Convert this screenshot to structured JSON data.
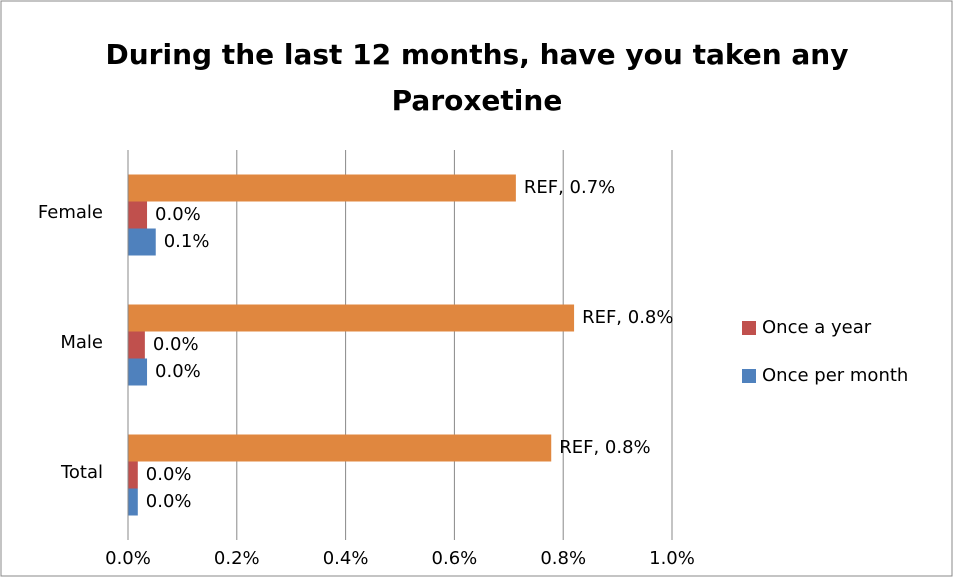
{
  "chart_data": {
    "type": "hbar",
    "title": "During the last 12 months, have you taken any Paroxetine",
    "categories": [
      "Female",
      "Male",
      "Total"
    ],
    "series": [
      {
        "name": "Once per month",
        "color": "#4f81bd",
        "values": [
          0.051,
          0.035,
          0.018
        ],
        "value_labels": [
          "0.1%",
          "0.0%",
          "0.0%"
        ],
        "show_in_legend": true
      },
      {
        "name": "Once a year",
        "color": "#c0504d",
        "values": [
          0.035,
          0.031,
          0.018
        ],
        "value_labels": [
          "0.0%",
          "0.0%",
          "0.0%"
        ],
        "show_in_legend": true
      },
      {
        "name": "REF",
        "color": "#e0873f",
        "values": [
          0.713,
          0.82,
          0.778
        ],
        "value_labels": [
          "REF, 0.7%",
          "REF, 0.8%",
          "REF, 0.8%"
        ],
        "show_in_legend": false
      }
    ],
    "xlim": [
      0,
      1.0
    ],
    "xticks": [
      {
        "value": 0,
        "label": "0.0%"
      },
      {
        "value": 0.2,
        "label": "0.2%"
      },
      {
        "value": 0.4,
        "label": "0.4%"
      },
      {
        "value": 0.6,
        "label": "0.6%"
      },
      {
        "value": 0.8,
        "label": "0.8%"
      },
      {
        "value": 1.0,
        "label": "1.0%"
      }
    ],
    "grid": true,
    "legend": "right"
  }
}
